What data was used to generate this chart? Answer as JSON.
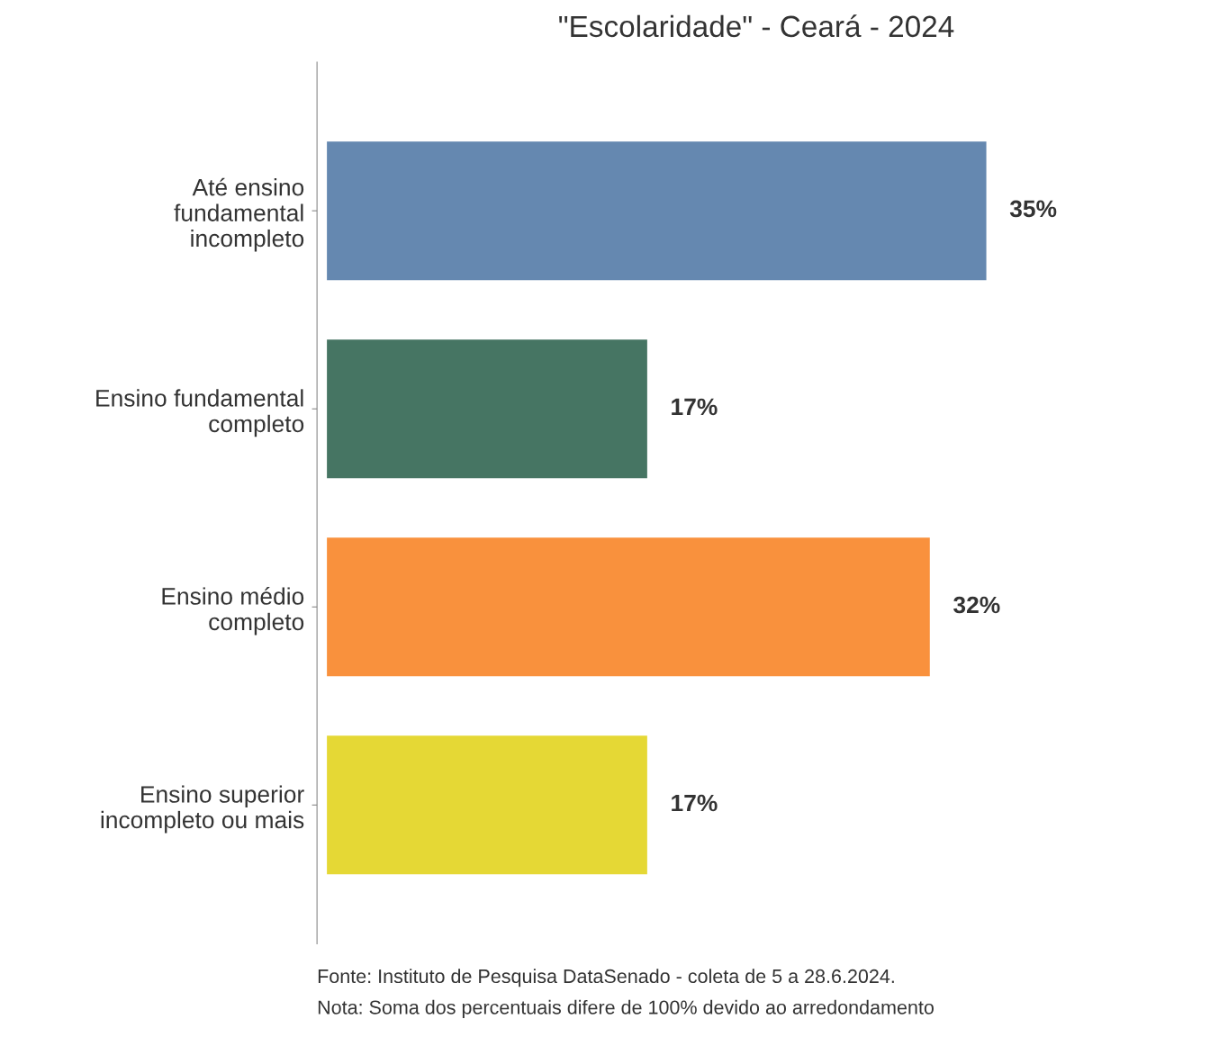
{
  "chart_data": {
    "type": "bar",
    "orientation": "horizontal",
    "title": "\"Escolaridade\" - Ceará - 2024",
    "categories": [
      "Até ensino\nfundamental\nincompleto",
      "Ensino fundamental\ncompleto",
      "Ensino médio\ncompleto",
      "Ensino superior\nincompleto ou mais"
    ],
    "values": [
      35,
      17,
      32,
      17
    ],
    "colors": [
      "#6588b0",
      "#467563",
      "#f9913d",
      "#e5d835"
    ],
    "value_labels": [
      "35%",
      "17%",
      "32%",
      "17%"
    ],
    "grid": false,
    "legend": false,
    "annotations": [
      "Fonte: Instituto de Pesquisa DataSenado - coleta de 5 a 28.6.2024.",
      "Nota: Soma dos percentuais difere de 100% devido ao arredondamento"
    ]
  }
}
